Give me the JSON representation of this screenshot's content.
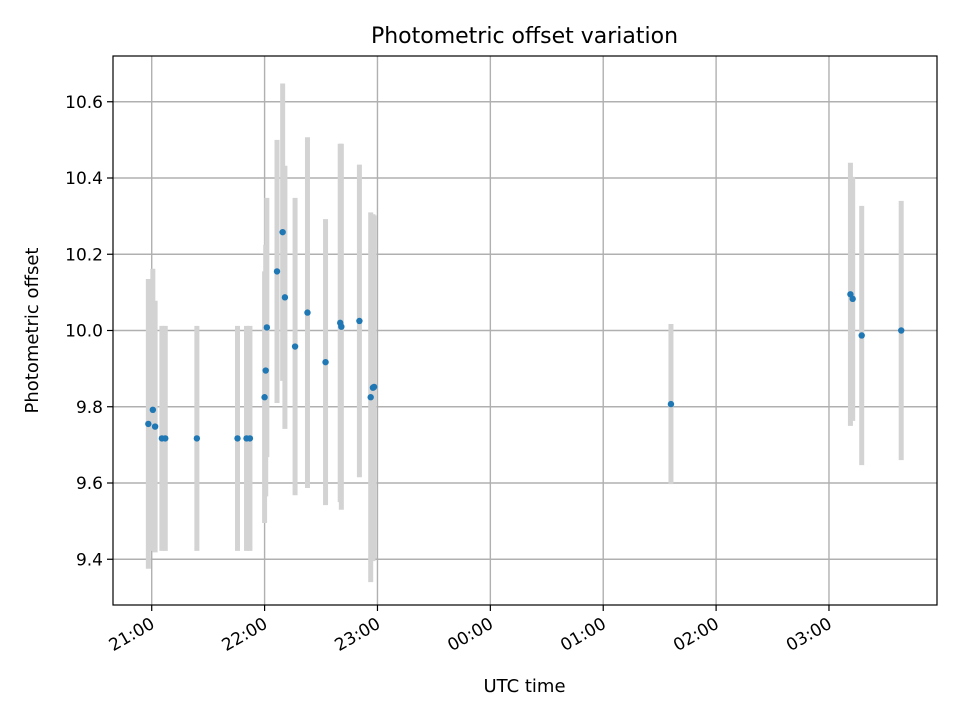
{
  "chart_data": {
    "type": "scatter",
    "title": "Photometric offset variation",
    "xlabel": "UTC time",
    "ylabel": "Photometric offset",
    "x_unit": "hours past 20:00 UTC",
    "xlim": [
      20.657,
      27.957
    ],
    "ylim": [
      9.28,
      10.72
    ],
    "x_ticks": [
      {
        "value": 21,
        "label": "21:00"
      },
      {
        "value": 22,
        "label": "22:00"
      },
      {
        "value": 23,
        "label": "23:00"
      },
      {
        "value": 24,
        "label": "00:00"
      },
      {
        "value": 25,
        "label": "01:00"
      },
      {
        "value": 26,
        "label": "02:00"
      },
      {
        "value": 27,
        "label": "03:00"
      }
    ],
    "y_ticks": [
      {
        "value": 9.4,
        "label": "9.4"
      },
      {
        "value": 9.6,
        "label": "9.6"
      },
      {
        "value": 9.8,
        "label": "9.8"
      },
      {
        "value": 10.0,
        "label": "10.0"
      },
      {
        "value": 10.2,
        "label": "10.2"
      },
      {
        "value": 10.4,
        "label": "10.4"
      },
      {
        "value": 10.6,
        "label": "10.6"
      }
    ],
    "grid": true,
    "marker_color": "#1f77b4",
    "errorbar_color": "#d3d3d3",
    "points": [
      {
        "x": 20.97,
        "y": 9.755,
        "err": 0.38
      },
      {
        "x": 21.01,
        "y": 9.792,
        "err": 0.37
      },
      {
        "x": 21.03,
        "y": 9.748,
        "err": 0.33
      },
      {
        "x": 21.09,
        "y": 9.717,
        "err": 0.295
      },
      {
        "x": 21.12,
        "y": 9.717,
        "err": 0.295
      },
      {
        "x": 21.4,
        "y": 9.717,
        "err": 0.295
      },
      {
        "x": 21.76,
        "y": 9.717,
        "err": 0.295
      },
      {
        "x": 21.84,
        "y": 9.717,
        "err": 0.295
      },
      {
        "x": 21.87,
        "y": 9.717,
        "err": 0.295
      },
      {
        "x": 22.0,
        "y": 9.825,
        "err": 0.33
      },
      {
        "x": 22.01,
        "y": 9.895,
        "err": 0.33
      },
      {
        "x": 22.02,
        "y": 10.008,
        "err": 0.34
      },
      {
        "x": 22.11,
        "y": 10.155,
        "err": 0.345
      },
      {
        "x": 22.16,
        "y": 10.258,
        "err": 0.39
      },
      {
        "x": 22.18,
        "y": 10.087,
        "err": 0.345
      },
      {
        "x": 22.27,
        "y": 9.958,
        "err": 0.39
      },
      {
        "x": 22.38,
        "y": 10.047,
        "err": 0.46
      },
      {
        "x": 22.54,
        "y": 9.917,
        "err": 0.375
      },
      {
        "x": 22.67,
        "y": 10.02,
        "err": 0.47
      },
      {
        "x": 22.68,
        "y": 10.01,
        "err": 0.48
      },
      {
        "x": 22.84,
        "y": 10.025,
        "err": 0.41
      },
      {
        "x": 22.94,
        "y": 9.825,
        "err": 0.485
      },
      {
        "x": 22.96,
        "y": 9.85,
        "err": 0.455
      },
      {
        "x": 22.97,
        "y": 9.852,
        "err": 0.45
      },
      {
        "x": 25.6,
        "y": 9.807,
        "err": 0.21
      },
      {
        "x": 27.19,
        "y": 10.095,
        "err": 0.345
      },
      {
        "x": 27.21,
        "y": 10.083,
        "err": 0.32
      },
      {
        "x": 27.29,
        "y": 9.987,
        "err": 0.34
      },
      {
        "x": 27.64,
        "y": 10.0,
        "err": 0.34
      }
    ]
  }
}
